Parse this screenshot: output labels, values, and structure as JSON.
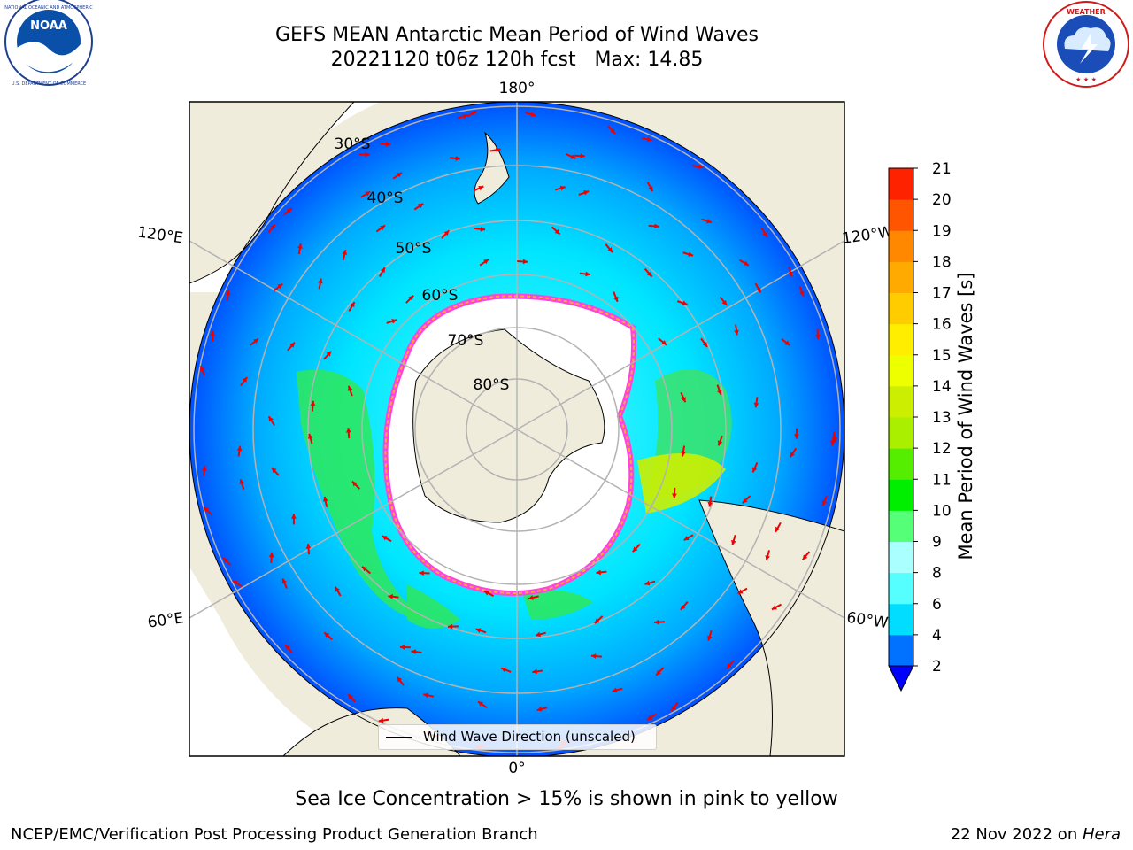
{
  "header": {
    "title_line1": "GEFS MEAN Antarctic Mean Period of Wind Waves",
    "title_line2": "20221120 t06z 120h fcst   Max: 14.85"
  },
  "logos": {
    "left": {
      "name": "noaa-logo",
      "text": "NOAA",
      "ring_text": "NATIONAL OCEANIC AND ATMOSPHERIC ADMINISTRATION · U.S. DEPARTMENT OF COMMERCE"
    },
    "right": {
      "name": "nws-logo",
      "ring_text": "NATIONAL WEATHER SERVICE"
    }
  },
  "map": {
    "projection": "south-polar-stereographic",
    "lon_labels": {
      "top": "180°",
      "bottom": "0°",
      "upper_left": "120°E",
      "upper_right": "120°W",
      "lower_left": "60°E",
      "lower_right": "60°W"
    },
    "lat_labels": [
      "30°S",
      "40°S",
      "50°S",
      "60°S",
      "70°S",
      "80°S"
    ],
    "legend": {
      "label": "Wind Wave Direction (unscaled)"
    }
  },
  "colorbar": {
    "label": "Mean Period of Wind Waves [s]",
    "ticks": [
      "2",
      "4",
      "6",
      "8",
      "9",
      "10",
      "11",
      "12",
      "13",
      "14",
      "15",
      "16",
      "17",
      "18",
      "19",
      "20",
      "21"
    ],
    "colors": [
      "#0072ff",
      "#00ddff",
      "#55ffff",
      "#aaffff",
      "#55ff77",
      "#00ee00",
      "#55ee00",
      "#aaee00",
      "#ccee00",
      "#eeff00",
      "#ffee00",
      "#ffcc00",
      "#ffaa00",
      "#ff8800",
      "#ff5500",
      "#ff2200"
    ],
    "extend_color": "#0000ff"
  },
  "footer": {
    "note": "Sea Ice Concentration > 15% is shown in pink to yellow",
    "left": "NCEP/EMC/Verification Post Processing Product Generation Branch",
    "right_prefix": "22 Nov 2022 on ",
    "right_machine": "Hera"
  }
}
